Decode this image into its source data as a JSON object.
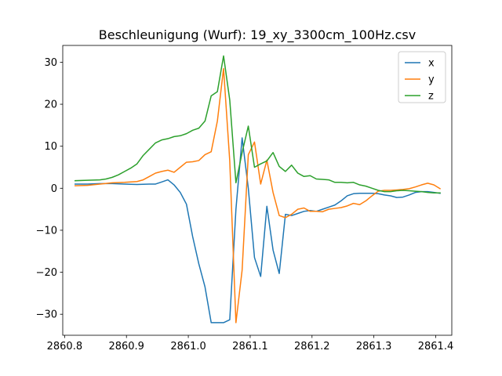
{
  "chart_data": {
    "type": "line",
    "title": "Beschleunigung (Wurf): 19_xy_3300cm_100Hz.csv",
    "xlabel": "",
    "ylabel": "",
    "xlim": [
      2860.797,
      2861.426
    ],
    "ylim": [
      -35,
      34
    ],
    "xticks": [
      2860.8,
      2860.9,
      2861.0,
      2861.1,
      2861.2,
      2861.3,
      2861.4
    ],
    "xtick_labels": [
      "2860.8",
      "2860.9",
      "2861.0",
      "2861.1",
      "2861.2",
      "2861.3",
      "2861.4"
    ],
    "yticks": [
      -30,
      -20,
      -10,
      0,
      10,
      20,
      30
    ],
    "ytick_labels": [
      "−30",
      "−20",
      "−10",
      "0",
      "10",
      "20",
      "30"
    ],
    "grid": false,
    "legend_position": "top-right",
    "series": [
      {
        "name": "x",
        "color": "#1f77b4",
        "points": [
          [
            2860.817,
            1.0
          ],
          [
            2860.837,
            1.0
          ],
          [
            2860.857,
            1.1
          ],
          [
            2860.877,
            1.1
          ],
          [
            2860.897,
            1.0
          ],
          [
            2860.917,
            0.9
          ],
          [
            2860.937,
            1.0
          ],
          [
            2860.947,
            1.0
          ],
          [
            2860.957,
            1.5
          ],
          [
            2860.967,
            2.0
          ],
          [
            2860.977,
            0.8
          ],
          [
            2860.987,
            -1.0
          ],
          [
            2860.997,
            -3.8
          ],
          [
            2861.007,
            -11.5
          ],
          [
            2861.017,
            -18.0
          ],
          [
            2861.027,
            -23.5
          ],
          [
            2861.037,
            -32.0
          ],
          [
            2861.047,
            -32.0
          ],
          [
            2861.057,
            -32.0
          ],
          [
            2861.067,
            -31.3
          ],
          [
            2861.077,
            -5.0
          ],
          [
            2861.087,
            12.0
          ],
          [
            2861.097,
            0.0
          ],
          [
            2861.107,
            -16.5
          ],
          [
            2861.117,
            -21.0
          ],
          [
            2861.127,
            -4.3
          ],
          [
            2861.137,
            -14.7
          ],
          [
            2861.147,
            -20.3
          ],
          [
            2861.157,
            -6.2
          ],
          [
            2861.167,
            -6.5
          ],
          [
            2861.177,
            -6.0
          ],
          [
            2861.187,
            -5.5
          ],
          [
            2861.197,
            -5.3
          ],
          [
            2861.207,
            -5.5
          ],
          [
            2861.217,
            -5.0
          ],
          [
            2861.227,
            -4.5
          ],
          [
            2861.237,
            -4.0
          ],
          [
            2861.247,
            -3.0
          ],
          [
            2861.257,
            -1.8
          ],
          [
            2861.267,
            -1.3
          ],
          [
            2861.277,
            -1.2
          ],
          [
            2861.287,
            -1.2
          ],
          [
            2861.297,
            -1.2
          ],
          [
            2861.307,
            -1.3
          ],
          [
            2861.317,
            -1.6
          ],
          [
            2861.327,
            -1.8
          ],
          [
            2861.337,
            -2.2
          ],
          [
            2861.347,
            -2.1
          ],
          [
            2861.357,
            -1.6
          ],
          [
            2861.367,
            -1.0
          ],
          [
            2861.377,
            -0.8
          ],
          [
            2861.387,
            -0.8
          ],
          [
            2861.397,
            -1.0
          ],
          [
            2861.407,
            -1.2
          ]
        ]
      },
      {
        "name": "y",
        "color": "#ff7f0e",
        "points": [
          [
            2860.817,
            0.6
          ],
          [
            2860.837,
            0.7
          ],
          [
            2860.857,
            1.0
          ],
          [
            2860.877,
            1.3
          ],
          [
            2860.897,
            1.4
          ],
          [
            2860.907,
            1.5
          ],
          [
            2860.917,
            1.6
          ],
          [
            2860.927,
            2.0
          ],
          [
            2860.937,
            2.8
          ],
          [
            2860.947,
            3.6
          ],
          [
            2860.957,
            4.0
          ],
          [
            2860.967,
            4.3
          ],
          [
            2860.977,
            3.8
          ],
          [
            2860.987,
            5.0
          ],
          [
            2860.997,
            6.2
          ],
          [
            2861.007,
            6.3
          ],
          [
            2861.017,
            6.6
          ],
          [
            2861.027,
            8.0
          ],
          [
            2861.037,
            8.7
          ],
          [
            2861.047,
            16.0
          ],
          [
            2861.057,
            28.5
          ],
          [
            2861.067,
            6.5
          ],
          [
            2861.077,
            -32.0
          ],
          [
            2861.087,
            -19.5
          ],
          [
            2861.097,
            8.0
          ],
          [
            2861.107,
            11.0
          ],
          [
            2861.117,
            1.0
          ],
          [
            2861.127,
            6.7
          ],
          [
            2861.137,
            -1.0
          ],
          [
            2861.147,
            -6.5
          ],
          [
            2861.157,
            -7.0
          ],
          [
            2861.167,
            -6.2
          ],
          [
            2861.177,
            -5.0
          ],
          [
            2861.187,
            -4.7
          ],
          [
            2861.197,
            -5.5
          ],
          [
            2861.207,
            -5.5
          ],
          [
            2861.217,
            -5.6
          ],
          [
            2861.227,
            -5.0
          ],
          [
            2861.237,
            -4.8
          ],
          [
            2861.247,
            -4.6
          ],
          [
            2861.257,
            -4.2
          ],
          [
            2861.267,
            -3.6
          ],
          [
            2861.277,
            -3.9
          ],
          [
            2861.287,
            -3.0
          ],
          [
            2861.297,
            -1.8
          ],
          [
            2861.307,
            -0.7
          ],
          [
            2861.317,
            -0.5
          ],
          [
            2861.327,
            -0.5
          ],
          [
            2861.337,
            -0.4
          ],
          [
            2861.347,
            -0.3
          ],
          [
            2861.357,
            -0.1
          ],
          [
            2861.367,
            0.3
          ],
          [
            2861.377,
            0.8
          ],
          [
            2861.387,
            1.2
          ],
          [
            2861.397,
            0.8
          ],
          [
            2861.407,
            -0.1
          ]
        ]
      },
      {
        "name": "z",
        "color": "#2ca02c",
        "points": [
          [
            2860.817,
            1.8
          ],
          [
            2860.837,
            1.9
          ],
          [
            2860.857,
            2.0
          ],
          [
            2860.867,
            2.2
          ],
          [
            2860.877,
            2.6
          ],
          [
            2860.887,
            3.2
          ],
          [
            2860.897,
            4.0
          ],
          [
            2860.907,
            4.8
          ],
          [
            2860.917,
            5.8
          ],
          [
            2860.927,
            7.8
          ],
          [
            2860.937,
            9.3
          ],
          [
            2860.947,
            10.8
          ],
          [
            2860.957,
            11.5
          ],
          [
            2860.967,
            11.8
          ],
          [
            2860.977,
            12.3
          ],
          [
            2860.987,
            12.5
          ],
          [
            2860.997,
            13.0
          ],
          [
            2861.007,
            13.8
          ],
          [
            2861.017,
            14.3
          ],
          [
            2861.027,
            16.0
          ],
          [
            2861.037,
            22.0
          ],
          [
            2861.047,
            23.0
          ],
          [
            2861.057,
            31.5
          ],
          [
            2861.067,
            21.0
          ],
          [
            2861.077,
            1.3
          ],
          [
            2861.087,
            8.5
          ],
          [
            2861.097,
            14.8
          ],
          [
            2861.107,
            5.0
          ],
          [
            2861.117,
            5.8
          ],
          [
            2861.127,
            6.5
          ],
          [
            2861.137,
            8.5
          ],
          [
            2861.147,
            5.2
          ],
          [
            2861.157,
            4.0
          ],
          [
            2861.167,
            5.5
          ],
          [
            2861.177,
            3.6
          ],
          [
            2861.187,
            2.8
          ],
          [
            2861.197,
            3.0
          ],
          [
            2861.207,
            2.2
          ],
          [
            2861.217,
            2.1
          ],
          [
            2861.227,
            2.0
          ],
          [
            2861.237,
            1.4
          ],
          [
            2861.247,
            1.4
          ],
          [
            2861.257,
            1.3
          ],
          [
            2861.267,
            1.4
          ],
          [
            2861.277,
            0.8
          ],
          [
            2861.287,
            0.5
          ],
          [
            2861.297,
            0.0
          ],
          [
            2861.307,
            -0.5
          ],
          [
            2861.317,
            -0.8
          ],
          [
            2861.327,
            -0.8
          ],
          [
            2861.337,
            -0.6
          ],
          [
            2861.347,
            -0.5
          ],
          [
            2861.357,
            -0.6
          ],
          [
            2861.367,
            -0.7
          ],
          [
            2861.377,
            -0.8
          ],
          [
            2861.387,
            -1.0
          ],
          [
            2861.397,
            -1.1
          ],
          [
            2861.407,
            -1.1
          ]
        ]
      }
    ]
  }
}
